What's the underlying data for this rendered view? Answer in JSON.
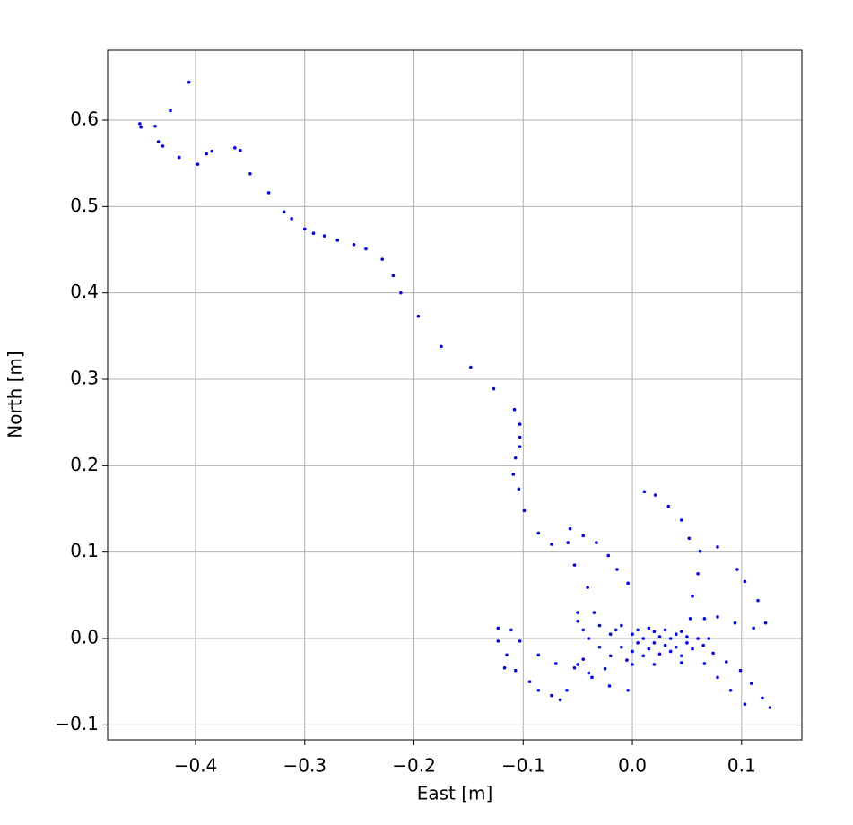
{
  "chart_data": {
    "type": "scatter",
    "xlabel": "East [m]",
    "ylabel": "North [m]",
    "color": "#0000ff",
    "grid": true,
    "xlim": [
      -0.4805,
      0.1552
    ],
    "ylim": [
      -0.1173,
      0.681
    ],
    "xticks": [
      {
        "value": -0.4,
        "label": "−0.4"
      },
      {
        "value": -0.3,
        "label": "−0.3"
      },
      {
        "value": -0.2,
        "label": "−0.2"
      },
      {
        "value": -0.1,
        "label": "−0.1"
      },
      {
        "value": 0.0,
        "label": "0.0"
      },
      0.1
    ],
    "yticks": [
      {
        "value": -0.1,
        "label": "−0.1"
      },
      {
        "value": 0.0,
        "label": "0.0"
      },
      0.1,
      0.2,
      0.3,
      0.4,
      0.5,
      0.6
    ],
    "x": [
      -0.451,
      -0.45,
      -0.437,
      -0.423,
      -0.434,
      -0.43,
      -0.415,
      -0.406,
      -0.398,
      -0.39,
      -0.385,
      -0.364,
      -0.359,
      -0.35,
      -0.333,
      -0.319,
      -0.312,
      -0.3,
      -0.292,
      -0.282,
      -0.27,
      -0.255,
      -0.244,
      -0.229,
      -0.219,
      -0.212,
      -0.196,
      -0.175,
      -0.148,
      -0.127,
      -0.108,
      -0.103,
      -0.103,
      -0.103,
      -0.107,
      -0.109,
      -0.104,
      -0.099,
      -0.086,
      -0.074,
      -0.057,
      -0.059,
      -0.053,
      -0.041,
      -0.045,
      -0.033,
      -0.022,
      -0.014,
      -0.004,
      0.011,
      0.021,
      0.033,
      0.045,
      0.052,
      0.062,
      0.06,
      0.055,
      0.053,
      0.078,
      0.096,
      0.103,
      0.115,
      0.122,
      0.111,
      0.094,
      0.078,
      0.066,
      0.126,
      0.119,
      0.109,
      0.099,
      0.086,
      0.074,
      0.103,
      0.09,
      0.078,
      0.066,
      -0.123,
      -0.111,
      -0.103,
      -0.115,
      -0.117,
      -0.107,
      -0.094,
      -0.086,
      -0.074,
      -0.066,
      -0.06,
      -0.053,
      -0.037,
      -0.021,
      -0.004,
      -0.086,
      -0.07,
      -0.045,
      -0.123,
      -0.05,
      -0.045,
      -0.04,
      -0.03,
      -0.03,
      -0.02,
      -0.02,
      -0.015,
      -0.01,
      -0.01,
      -0.005,
      0,
      0,
      0.005,
      0.005,
      0.01,
      0.01,
      0.015,
      0.015,
      0.02,
      0.02,
      0.025,
      0.025,
      0.03,
      0.03,
      0.035,
      0.035,
      0.04,
      0.04,
      0.045,
      0.045,
      0.05,
      0.05,
      0.055,
      0.06,
      0.065,
      0.07,
      -0.05,
      -0.04,
      -0.025,
      0.0,
      0.02,
      0.045,
      -0.035,
      -0.05
    ],
    "values": [
      0.596,
      0.592,
      0.593,
      0.611,
      0.575,
      0.57,
      0.557,
      0.644,
      0.549,
      0.561,
      0.564,
      0.568,
      0.565,
      0.538,
      0.516,
      0.494,
      0.486,
      0.474,
      0.469,
      0.466,
      0.461,
      0.456,
      0.451,
      0.439,
      0.42,
      0.4,
      0.373,
      0.338,
      0.314,
      0.289,
      0.265,
      0.248,
      0.233,
      0.222,
      0.209,
      0.19,
      0.173,
      0.148,
      0.122,
      0.109,
      0.127,
      0.111,
      0.085,
      0.059,
      0.119,
      0.111,
      0.096,
      0.08,
      0.064,
      0.17,
      0.166,
      0.153,
      0.137,
      0.116,
      0.101,
      0.075,
      0.049,
      0.023,
      0.106,
      0.08,
      0.066,
      0.044,
      0.018,
      0.012,
      0.018,
      0.025,
      0.023,
      -0.08,
      -0.069,
      -0.052,
      -0.037,
      -0.027,
      -0.017,
      -0.076,
      -0.06,
      -0.045,
      -0.029,
      0.012,
      0.01,
      -0.003,
      -0.019,
      -0.034,
      -0.037,
      -0.05,
      -0.06,
      -0.066,
      -0.071,
      -0.06,
      -0.034,
      -0.045,
      -0.055,
      -0.06,
      -0.019,
      -0.029,
      -0.024,
      -0.003,
      0.02,
      0.01,
      0.0,
      0.015,
      -0.01,
      0.005,
      -0.02,
      0.01,
      -0.01,
      0.015,
      -0.025,
      0.005,
      -0.015,
      0.01,
      -0.005,
      -0.02,
      0.0,
      0.012,
      -0.012,
      -0.005,
      0.008,
      -0.018,
      0.002,
      -0.008,
      0.01,
      -0.015,
      0.0,
      0.005,
      -0.01,
      -0.02,
      0.008,
      -0.005,
      0.002,
      -0.012,
      0.0,
      -0.008,
      0.0,
      -0.03,
      -0.04,
      -0.035,
      -0.03,
      -0.03,
      -0.028,
      0.03,
      0.03
    ]
  }
}
